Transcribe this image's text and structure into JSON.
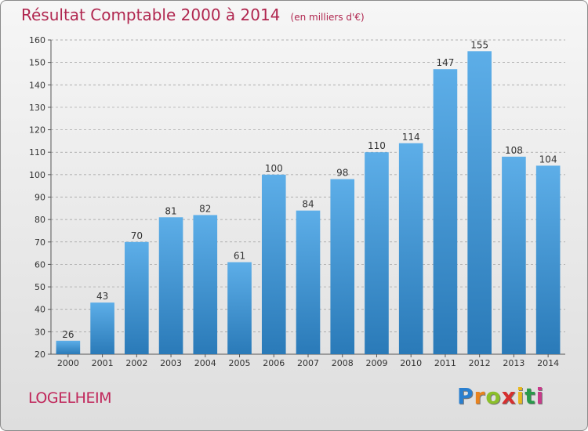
{
  "title": "Résultat Comptable 2000 à 2014",
  "unit_label": "(en milliers d'€)",
  "commune": "LOGELHEIM",
  "brand": {
    "letters": [
      "P",
      "r",
      "o",
      "x",
      "i",
      "t",
      "i"
    ],
    "colors": [
      "#2a7fcf",
      "#e8831f",
      "#8bbf2a",
      "#d62f2f",
      "#e8b81f",
      "#2a9a4a",
      "#c83a8a"
    ]
  },
  "colors": {
    "title": "#b0264f",
    "bar_light": "#5daee8",
    "bar_dark": "#2a7ab8",
    "grid": "#9a9a9a"
  },
  "chart_data": {
    "type": "bar",
    "title": "Résultat Comptable 2000 à 2014",
    "xlabel": "",
    "ylabel": "",
    "categories": [
      "2000",
      "2001",
      "2002",
      "2003",
      "2004",
      "2005",
      "2006",
      "2007",
      "2008",
      "2009",
      "2010",
      "2011",
      "2012",
      "2013",
      "2014"
    ],
    "values": [
      26,
      43,
      70,
      81,
      82,
      61,
      100,
      84,
      98,
      110,
      114,
      147,
      155,
      108,
      104
    ],
    "ylim": [
      20,
      160
    ],
    "yticks": [
      20,
      30,
      40,
      50,
      60,
      70,
      80,
      90,
      100,
      110,
      120,
      130,
      140,
      150,
      160
    ],
    "grid": "horizontal dashed",
    "legend": "none"
  }
}
